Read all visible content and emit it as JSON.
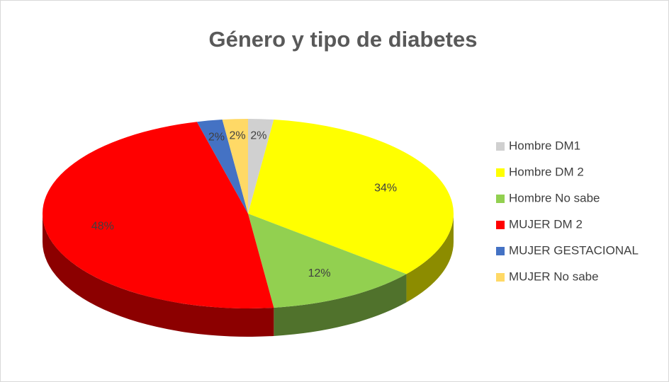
{
  "chart_data": {
    "type": "pie",
    "title": "Género y tipo de diabetes",
    "categories": [
      "Hombre DM1",
      "Hombre DM 2",
      "Hombre No sabe",
      "MUJER DM 2",
      "MUJER GESTACIONAL",
      "MUJER No sabe"
    ],
    "values": [
      2,
      34,
      12,
      48,
      2,
      2
    ],
    "value_labels": [
      "2%",
      "34%",
      "12%",
      "48%",
      "2%",
      "2%"
    ],
    "colors": [
      "#d0d0d0",
      "#ffff00",
      "#92d050",
      "#ff0000",
      "#4472c4",
      "#ffd966"
    ],
    "legend": "right"
  }
}
